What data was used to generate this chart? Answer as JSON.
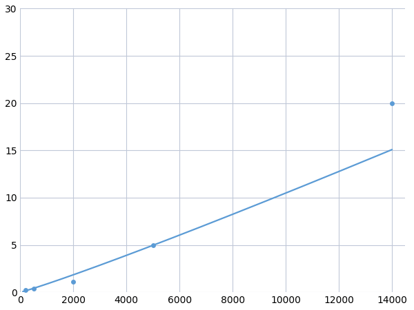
{
  "x": [
    200,
    500,
    2000,
    5000,
    14000
  ],
  "y": [
    0.2,
    0.4,
    1.1,
    5.0,
    20.0
  ],
  "line_color": "#5b9bd5",
  "marker_color": "#5b9bd5",
  "marker_size": 5,
  "line_width": 1.6,
  "xlim": [
    0,
    14500
  ],
  "ylim": [
    0,
    30
  ],
  "xticks": [
    0,
    2000,
    4000,
    6000,
    8000,
    10000,
    12000,
    14000
  ],
  "yticks": [
    0,
    5,
    10,
    15,
    20,
    25,
    30
  ],
  "grid_color": "#c0c8d8",
  "background_color": "#ffffff",
  "tick_fontsize": 10
}
